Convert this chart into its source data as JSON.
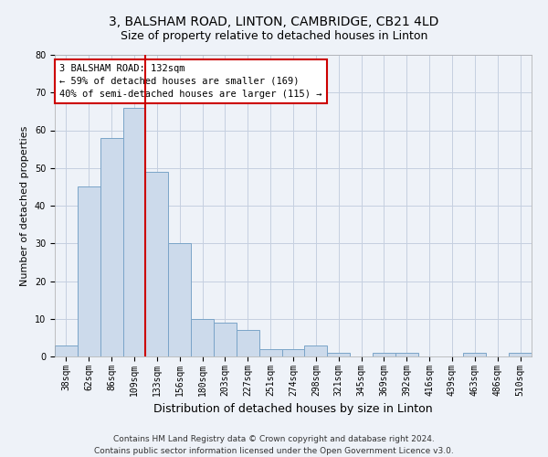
{
  "title": "3, BALSHAM ROAD, LINTON, CAMBRIDGE, CB21 4LD",
  "subtitle": "Size of property relative to detached houses in Linton",
  "xlabel": "Distribution of detached houses by size in Linton",
  "ylabel": "Number of detached properties",
  "footnote": "Contains HM Land Registry data © Crown copyright and database right 2024.\nContains public sector information licensed under the Open Government Licence v3.0.",
  "bin_labels": [
    "38sqm",
    "62sqm",
    "86sqm",
    "109sqm",
    "133sqm",
    "156sqm",
    "180sqm",
    "203sqm",
    "227sqm",
    "251sqm",
    "274sqm",
    "298sqm",
    "321sqm",
    "345sqm",
    "369sqm",
    "392sqm",
    "416sqm",
    "439sqm",
    "463sqm",
    "486sqm",
    "510sqm"
  ],
  "bar_values": [
    3,
    45,
    58,
    66,
    49,
    30,
    10,
    9,
    7,
    2,
    2,
    3,
    1,
    0,
    1,
    1,
    0,
    0,
    1,
    0,
    1
  ],
  "bar_color": "#ccdaeb",
  "bar_edge_color": "#7aa4c8",
  "vline_x_index": 3.5,
  "annotation_text": "3 BALSHAM ROAD: 132sqm\n← 59% of detached houses are smaller (169)\n40% of semi-detached houses are larger (115) →",
  "annotation_box_color": "white",
  "annotation_box_edge_color": "#cc0000",
  "vline_color": "#cc0000",
  "ylim": [
    0,
    80
  ],
  "yticks": [
    0,
    10,
    20,
    30,
    40,
    50,
    60,
    70,
    80
  ],
  "background_color": "#eef2f8",
  "grid_color": "#c5cfe0",
  "title_fontsize": 10,
  "subtitle_fontsize": 9,
  "xlabel_fontsize": 9,
  "ylabel_fontsize": 8,
  "tick_fontsize": 7,
  "annotation_fontsize": 7.5,
  "footnote_fontsize": 6.5
}
